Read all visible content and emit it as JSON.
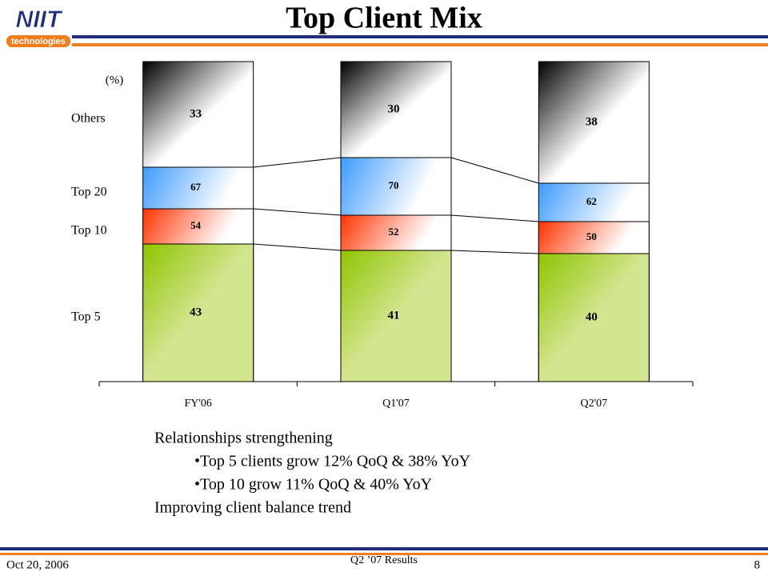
{
  "header": {
    "logo": "NIIT",
    "logo_sub": "technologies",
    "title": "Top Client Mix"
  },
  "chart_data": {
    "type": "bar",
    "unit_label": "(%)",
    "categories": [
      "FY'06",
      "Q1'07",
      "Q2'07"
    ],
    "series": [
      {
        "name": "Top 5",
        "color": "#8fc400",
        "values": [
          43,
          41,
          40
        ]
      },
      {
        "name": "Top 10",
        "color": "#ff3300",
        "values": [
          54,
          52,
          50
        ]
      },
      {
        "name": "Top 20",
        "color": "#3d9bff",
        "values": [
          67,
          70,
          62
        ]
      },
      {
        "name": "Others",
        "color": "#000000",
        "values": [
          33,
          30,
          38
        ]
      }
    ],
    "ylim": [
      0,
      100
    ]
  },
  "bullets": {
    "heading": "Relationships strengthening",
    "items": [
      "•Top 5 clients grow 12% QoQ & 38% YoY",
      "•Top 10 grow 11% QoQ & 40% YoY"
    ],
    "closing": "Improving client balance trend"
  },
  "footer": {
    "date": "Oct 20, 2006",
    "center": "Q2 ’07 Results",
    "page": "8"
  }
}
